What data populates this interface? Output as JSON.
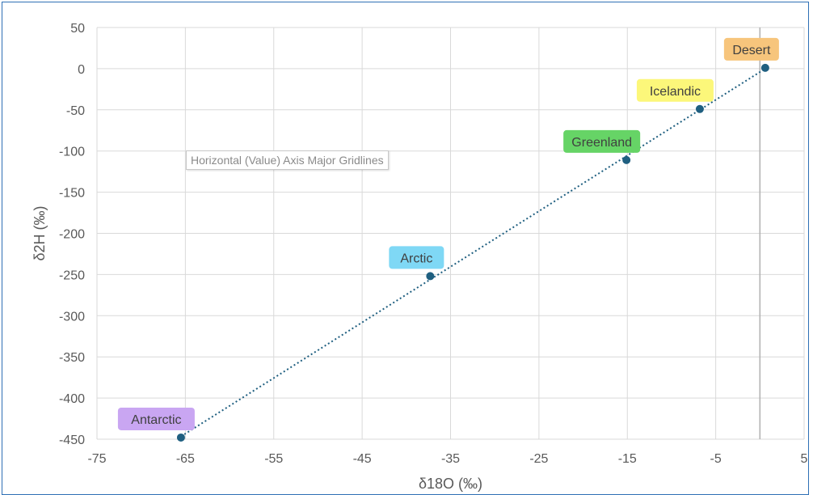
{
  "tooltip": "Horizontal (Value) Axis Major Gridlines",
  "chart_data": {
    "type": "scatter",
    "xlabel": "δ18O (‰)",
    "ylabel": "δ2H (‰)",
    "xlim": [
      -75,
      5
    ],
    "ylim": [
      -450,
      50
    ],
    "xticks": [
      -75,
      -65,
      -55,
      -45,
      -35,
      -25,
      -15,
      -5,
      5
    ],
    "yticks": [
      50,
      0,
      -50,
      -100,
      -150,
      -200,
      -250,
      -300,
      -350,
      -400,
      -450
    ],
    "grid": true,
    "trendline": "dotted linear",
    "series": [
      {
        "color": "#1f5f80",
        "points": [
          {
            "label": "Antarctic",
            "x": -65.5,
            "y": -448,
            "label_color": "#c9a6f2"
          },
          {
            "label": "Arctic",
            "x": -37.3,
            "y": -252,
            "label_color": "#7fd8f5"
          },
          {
            "label": "Greenland",
            "x": -15.1,
            "y": -111,
            "label_color": "#66d466"
          },
          {
            "label": "Icelandic",
            "x": -6.8,
            "y": -49,
            "label_color": "#fcf77a"
          },
          {
            "label": "Desert",
            "x": 0.6,
            "y": 1,
            "label_color": "#f7c57c"
          }
        ]
      }
    ]
  }
}
